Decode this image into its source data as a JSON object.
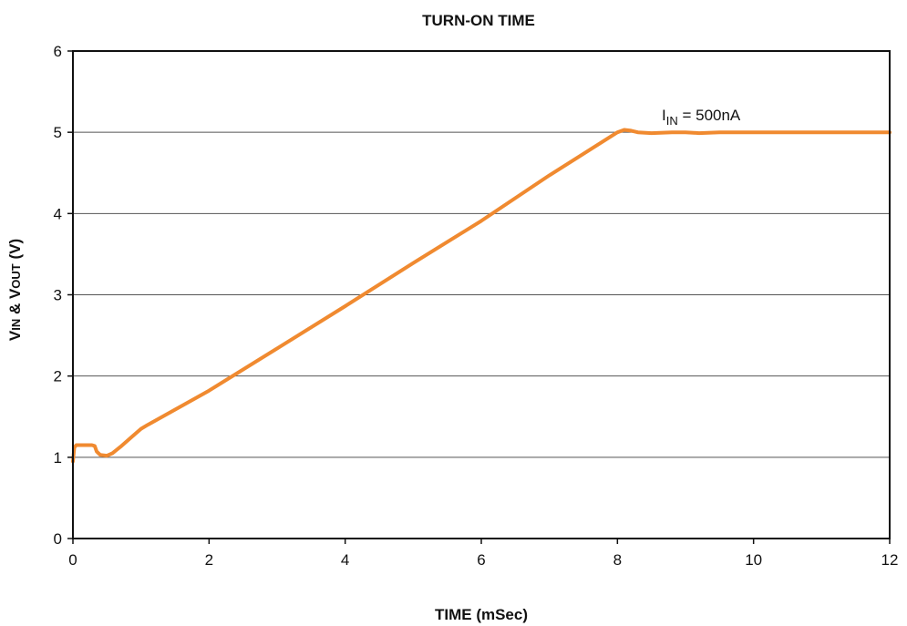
{
  "chart_data": {
    "type": "line",
    "title": "TURN-ON TIME",
    "xlabel": "TIME (mSec)",
    "ylabel": {
      "parts": [
        {
          "text": "V",
          "sub": false
        },
        {
          "text": "IN",
          "sub": true
        },
        {
          "text": " & V",
          "sub": false
        },
        {
          "text": "OUT",
          "sub": true
        },
        {
          "text": " (V)",
          "sub": false
        }
      ]
    },
    "xlim": [
      0,
      12
    ],
    "ylim": [
      0,
      6
    ],
    "xticks": [
      0,
      2,
      4,
      6,
      8,
      10,
      12
    ],
    "yticks": [
      0,
      1,
      2,
      3,
      4,
      5,
      6
    ],
    "grid": "horizontal",
    "annotation": {
      "main": "I",
      "sub": "IN",
      "rest": " = 500nA"
    },
    "line_color": "#F08A30",
    "series": [
      {
        "x": [
          0,
          0.02,
          0.05,
          0.1,
          0.2,
          0.28,
          0.32,
          0.35,
          0.4,
          0.5,
          0.58,
          0.7,
          0.85,
          1.0,
          1.1,
          2.0,
          3.0,
          4.0,
          5.0,
          6.0,
          7.0,
          8.0,
          8.1,
          8.2,
          8.3,
          8.5,
          8.8,
          9.0,
          9.2,
          9.5,
          10.0,
          11.0,
          12.0
        ],
        "y": [
          0.95,
          1.12,
          1.15,
          1.15,
          1.15,
          1.15,
          1.14,
          1.07,
          1.03,
          1.02,
          1.05,
          1.13,
          1.24,
          1.35,
          1.4,
          1.82,
          2.34,
          2.86,
          3.39,
          3.91,
          4.47,
          5.0,
          5.03,
          5.02,
          5.0,
          4.99,
          5.0,
          5.0,
          4.99,
          5.0,
          5.0,
          5.0,
          5.0
        ]
      }
    ]
  }
}
